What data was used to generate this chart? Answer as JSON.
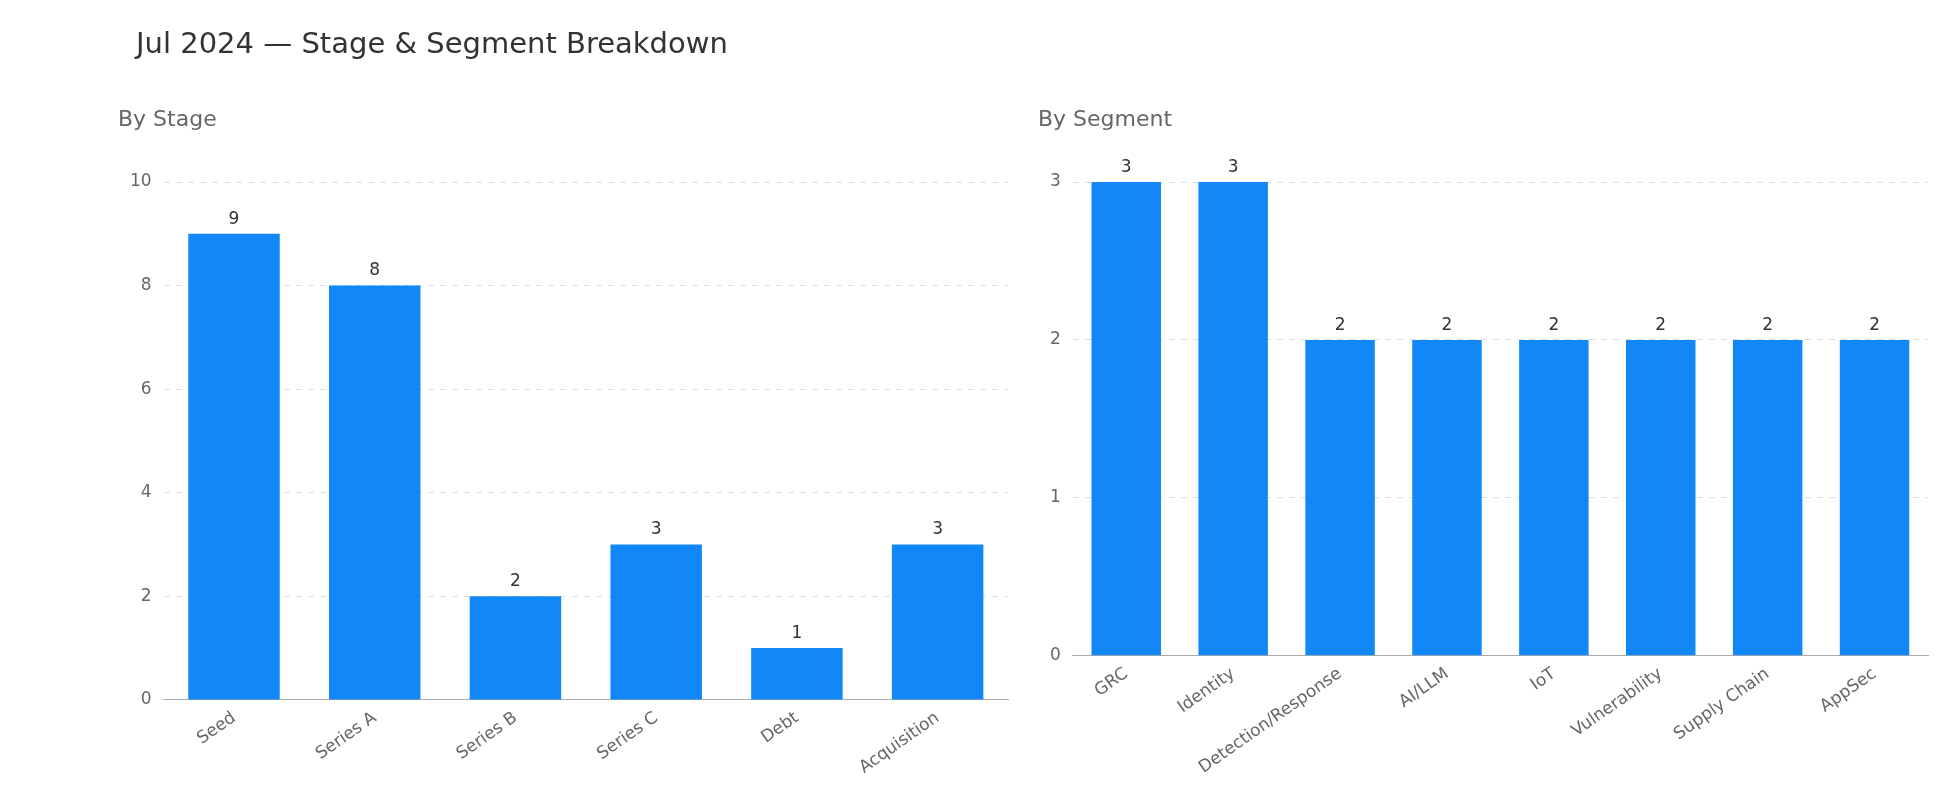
{
  "chart_data": [
    {
      "type": "bar",
      "title": "Jul 2024 — Stage & Segment Breakdown",
      "subtitle": "By Stage",
      "categories": [
        "Seed",
        "Series A",
        "Series B",
        "Series C",
        "Debt",
        "Acquisition"
      ],
      "values": [
        9,
        8,
        2,
        3,
        1,
        3
      ],
      "color": "#1288f8",
      "ylim": [
        0,
        10
      ],
      "yticks": [
        0,
        2,
        4,
        6,
        8,
        10
      ],
      "grid": "y",
      "data_labels": true,
      "legend": false
    },
    {
      "type": "bar",
      "subtitle": "By Segment",
      "categories": [
        "GRC",
        "Identity",
        "Detection/Response",
        "AI/LLM",
        "IoT",
        "Vulnerability",
        "Supply Chain",
        "AppSec"
      ],
      "values": [
        3,
        3,
        2,
        2,
        2,
        2,
        2,
        2
      ],
      "color": "#1288f8",
      "ylim": [
        0,
        3
      ],
      "yticks": [
        0,
        1,
        2,
        3
      ],
      "grid": "y",
      "data_labels": true,
      "legend": false
    }
  ]
}
